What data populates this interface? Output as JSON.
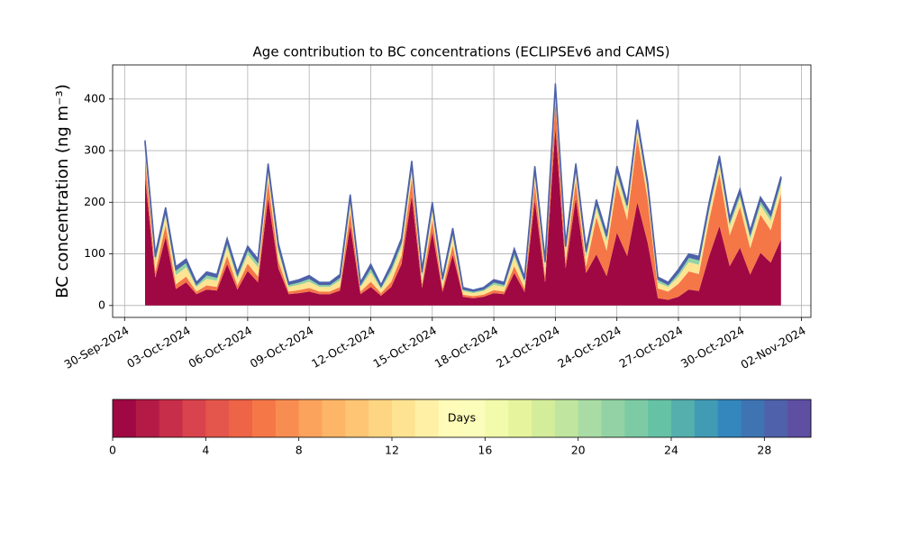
{
  "chart_data": {
    "type": "stacked_area",
    "title": "Age contribution to BC concentrations (ECLIPSEv6 and CAMS)",
    "y_label": "BC concentration (ng m⁻³)",
    "x": [
      "2024-10-01 00:00",
      "2024-10-01 12:00",
      "2024-10-02 00:00",
      "2024-10-02 12:00",
      "2024-10-03 00:00",
      "2024-10-03 12:00",
      "2024-10-04 00:00",
      "2024-10-04 12:00",
      "2024-10-05 00:00",
      "2024-10-05 12:00",
      "2024-10-06 00:00",
      "2024-10-06 12:00",
      "2024-10-07 00:00",
      "2024-10-07 12:00",
      "2024-10-08 00:00",
      "2024-10-08 12:00",
      "2024-10-09 00:00",
      "2024-10-09 12:00",
      "2024-10-10 00:00",
      "2024-10-10 12:00",
      "2024-10-11 00:00",
      "2024-10-11 12:00",
      "2024-10-12 00:00",
      "2024-10-12 12:00",
      "2024-10-13 00:00",
      "2024-10-13 12:00",
      "2024-10-14 00:00",
      "2024-10-14 12:00",
      "2024-10-15 00:00",
      "2024-10-15 12:00",
      "2024-10-16 00:00",
      "2024-10-16 12:00",
      "2024-10-17 00:00",
      "2024-10-17 12:00",
      "2024-10-18 00:00",
      "2024-10-18 12:00",
      "2024-10-19 00:00",
      "2024-10-19 12:00",
      "2024-10-20 00:00",
      "2024-10-20 12:00",
      "2024-10-21 00:00",
      "2024-10-21 12:00",
      "2024-10-22 00:00",
      "2024-10-22 12:00",
      "2024-10-23 00:00",
      "2024-10-23 12:00",
      "2024-10-24 00:00",
      "2024-10-24 12:00",
      "2024-10-25 00:00",
      "2024-10-25 12:00",
      "2024-10-26 00:00",
      "2024-10-26 12:00",
      "2024-10-27 00:00",
      "2024-10-27 12:00",
      "2024-10-28 00:00",
      "2024-10-28 12:00",
      "2024-10-29 00:00",
      "2024-10-29 12:00",
      "2024-10-30 00:00",
      "2024-10-30 12:00",
      "2024-10-31 00:00",
      "2024-10-31 12:00",
      "2024-11-01 00:00"
    ],
    "series": [
      {
        "color": "#a00843",
        "values": [
          248,
          54,
          133,
          32,
          45,
          22,
          31,
          29,
          80,
          31,
          67,
          45,
          208,
          72,
          22,
          24,
          27,
          22,
          22,
          29,
          155,
          22,
          36,
          19,
          36,
          80,
          212,
          34,
          142,
          26,
          98,
          17,
          14,
          17,
          24,
          22,
          63,
          26,
          204,
          45,
          344,
          72,
          208,
          63,
          99,
          57,
          141,
          96,
          200,
          122,
          14,
          11,
          17,
          31,
          28,
          96,
          154,
          76,
          112,
          60,
          102,
          83,
          128
        ]
      },
      {
        "color": "#f57748",
        "values": [
          38,
          12,
          23,
          9,
          11,
          5,
          8,
          7,
          16,
          8,
          14,
          11,
          33,
          14,
          5,
          6,
          7,
          5,
          5,
          7,
          26,
          5,
          10,
          5,
          10,
          16,
          34,
          8,
          24,
          7,
          18,
          4,
          4,
          4,
          6,
          5,
          13,
          7,
          32,
          11,
          52,
          14,
          33,
          13,
          72,
          49,
          95,
          70,
          126,
          84,
          19,
          16,
          25,
          35,
          33,
          70,
          102,
          60,
          79,
          51,
          74,
          63,
          88
        ]
      },
      {
        "color": "#fee492",
        "values": [
          18,
          18,
          18,
          18,
          18,
          9,
          13,
          12,
          18,
          13,
          18,
          18,
          18,
          18,
          9,
          10,
          12,
          9,
          9,
          12,
          18,
          9,
          18,
          8,
          18,
          18,
          18,
          14,
          18,
          11,
          18,
          7,
          6,
          7,
          10,
          9,
          18,
          11,
          18,
          18,
          18,
          18,
          18,
          18,
          18,
          18,
          18,
          18,
          18,
          18,
          11,
          9,
          14,
          18,
          18,
          18,
          18,
          18,
          18,
          18,
          18,
          18,
          18
        ]
      },
      {
        "color": "#92d2a4",
        "values": [
          10,
          10,
          10,
          10,
          10,
          5,
          8,
          7,
          10,
          8,
          10,
          10,
          10,
          10,
          5,
          6,
          7,
          5,
          5,
          7,
          10,
          5,
          10,
          5,
          10,
          10,
          10,
          8,
          10,
          7,
          10,
          4,
          4,
          4,
          6,
          5,
          10,
          7,
          10,
          10,
          10,
          10,
          10,
          10,
          10,
          10,
          10,
          10,
          10,
          10,
          7,
          5,
          8,
          10,
          10,
          10,
          10,
          10,
          10,
          10,
          10,
          10,
          10
        ]
      },
      {
        "color": "#4e61aa",
        "values": [
          6,
          6,
          6,
          6,
          6,
          4,
          5,
          5,
          6,
          5,
          6,
          6,
          6,
          6,
          4,
          4,
          5,
          4,
          4,
          5,
          6,
          4,
          6,
          3,
          6,
          6,
          6,
          6,
          6,
          4,
          6,
          3,
          2,
          3,
          4,
          4,
          6,
          4,
          6,
          6,
          6,
          6,
          6,
          6,
          6,
          6,
          6,
          6,
          6,
          6,
          4,
          4,
          6,
          6,
          6,
          6,
          6,
          6,
          6,
          6,
          6,
          6,
          6
        ]
      }
    ],
    "xlim": [
      "2024-09-29 10:00",
      "2024-11-02 11:00"
    ],
    "xticks": [
      {
        "value": "2024-09-30",
        "label": "30-Sep-2024"
      },
      {
        "value": "2024-10-03",
        "label": "03-Oct-2024"
      },
      {
        "value": "2024-10-06",
        "label": "06-Oct-2024"
      },
      {
        "value": "2024-10-09",
        "label": "09-Oct-2024"
      },
      {
        "value": "2024-10-12",
        "label": "12-Oct-2024"
      },
      {
        "value": "2024-10-15",
        "label": "15-Oct-2024"
      },
      {
        "value": "2024-10-18",
        "label": "18-Oct-2024"
      },
      {
        "value": "2024-10-21",
        "label": "21-Oct-2024"
      },
      {
        "value": "2024-10-24",
        "label": "24-Oct-2024"
      },
      {
        "value": "2024-10-27",
        "label": "27-Oct-2024"
      },
      {
        "value": "2024-10-30",
        "label": "30-Oct-2024"
      },
      {
        "value": "2024-11-02",
        "label": "02-Nov-2024"
      }
    ],
    "ylim": [
      -23,
      466
    ],
    "yticks": [
      0,
      100,
      200,
      300,
      400
    ],
    "grid": true,
    "colorbar": {
      "label": "Days",
      "lim": [
        0,
        30
      ],
      "ticks": [
        0,
        4,
        8,
        12,
        16,
        20,
        24,
        28
      ],
      "colors": [
        "#a00843",
        "#b41a46",
        "#c62e49",
        "#d8434e",
        "#e4564b",
        "#ed6447",
        "#f57748",
        "#f88d52",
        "#fba25c",
        "#fdb567",
        "#fdc574",
        "#fed582",
        "#fee492",
        "#fff0a6",
        "#fffbb8",
        "#fbfdba",
        "#f2faab",
        "#e6f59d",
        "#d4ed9b",
        "#c0e59f",
        "#a9dca4",
        "#92d2a4",
        "#7ccba5",
        "#66c2a5",
        "#55afad",
        "#429bb4",
        "#3387bc",
        "#3f74b3",
        "#4e61aa",
        "#5e4fa2"
      ]
    }
  }
}
